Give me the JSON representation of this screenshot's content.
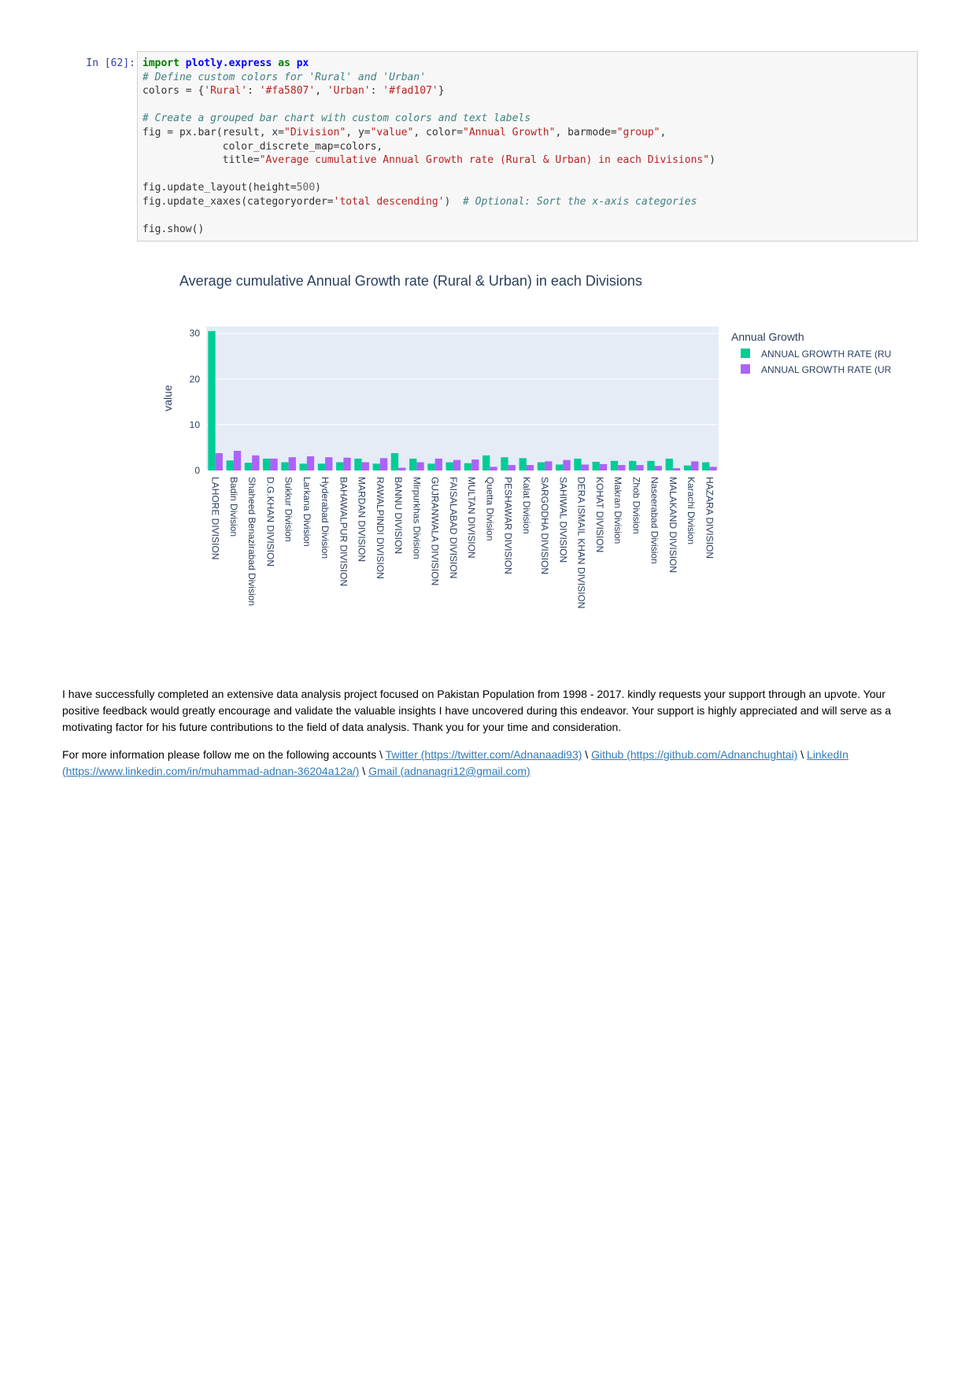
{
  "cell": {
    "prompt": "In [62]:",
    "code_lines": [
      [
        {
          "t": "kw",
          "v": "import"
        },
        {
          "t": "",
          "v": " "
        },
        {
          "t": "nn",
          "v": "plotly.express"
        },
        {
          "t": "",
          "v": " "
        },
        {
          "t": "kw",
          "v": "as"
        },
        {
          "t": "",
          "v": " "
        },
        {
          "t": "nn",
          "v": "px"
        }
      ],
      [
        {
          "t": "c1",
          "v": "# Define custom colors for 'Rural' and 'Urban'"
        }
      ],
      [
        {
          "t": "",
          "v": "colors = {"
        },
        {
          "t": "s",
          "v": "'Rural'"
        },
        {
          "t": "",
          "v": ": "
        },
        {
          "t": "s",
          "v": "'#fa5807'"
        },
        {
          "t": "",
          "v": ", "
        },
        {
          "t": "s",
          "v": "'Urban'"
        },
        {
          "t": "",
          "v": ": "
        },
        {
          "t": "s",
          "v": "'#fad107'"
        },
        {
          "t": "",
          "v": "}"
        }
      ],
      [],
      [
        {
          "t": "c1",
          "v": "# Create a grouped bar chart with custom colors and text labels"
        }
      ],
      [
        {
          "t": "",
          "v": "fig = px.bar(result, x="
        },
        {
          "t": "s",
          "v": "\"Division\""
        },
        {
          "t": "",
          "v": ", y="
        },
        {
          "t": "s",
          "v": "\"value\""
        },
        {
          "t": "",
          "v": ", color="
        },
        {
          "t": "s",
          "v": "\"Annual Growth\""
        },
        {
          "t": "",
          "v": ", barmode="
        },
        {
          "t": "s",
          "v": "\"group\""
        },
        {
          "t": "",
          "v": ","
        }
      ],
      [
        {
          "t": "",
          "v": "             color_discrete_map=colors,"
        }
      ],
      [
        {
          "t": "",
          "v": "             title="
        },
        {
          "t": "s",
          "v": "\"Average cumulative Annual Growth rate (Rural & Urban) in each Divisions\""
        },
        {
          "t": "",
          "v": ")"
        }
      ],
      [],
      [
        {
          "t": "",
          "v": "fig.update_layout(height="
        },
        {
          "t": "m",
          "v": "500"
        },
        {
          "t": "",
          "v": ")"
        }
      ],
      [
        {
          "t": "",
          "v": "fig.update_xaxes(categoryorder="
        },
        {
          "t": "s",
          "v": "'total descending'"
        },
        {
          "t": "",
          "v": ")  "
        },
        {
          "t": "c1",
          "v": "# Optional: Sort the x-axis categories"
        }
      ],
      [],
      [
        {
          "t": "",
          "v": "fig.show()"
        }
      ]
    ]
  },
  "chart_data": {
    "type": "bar",
    "title": "Average cumulative Annual Growth rate (Rural & Urban) in each Divisions",
    "xlabel": "",
    "ylabel": "value",
    "ylim": [
      0,
      31.5
    ],
    "yticks": [
      0,
      10,
      20,
      30
    ],
    "grid": true,
    "legend_title": "Annual Growth",
    "legend_position": "top-right",
    "categories": [
      "LAHORE DIVISION",
      "Badin Division",
      "Shaheed Benazirabad Division",
      "D.G.KHAN DIVISION",
      "Sukkur Division",
      "Larkana Division",
      "Hyderabad Division",
      "BAHAWALPUR DIVISION",
      "MARDAN DIVISION",
      "RAWALPINDI DIVISION",
      "BANNU DIVISION",
      "Mirpurkhas Division",
      "GUJRANWALA DIVISION",
      "FAISALABAD DIVISION",
      "MULTAN DIVISION",
      "Quetta Division",
      "PESHAWAR DIVISION",
      "Kalat Division",
      "SARGODHA DIVISION",
      "SAHIWAL DIVISION",
      "DERA ISMAIL KHAN DIVISION",
      "KOHAT DIVISION",
      "Makran Division",
      "Zhob Division",
      "Naseerabad Division",
      "MALAKAND DIVISION",
      "Karachi Division",
      "HAZARA DIVISION"
    ],
    "series": [
      {
        "name": "ANNUAL GROWTH RATE (RU",
        "color": "#00cc96",
        "values": [
          30.5,
          2.2,
          1.7,
          2.6,
          1.8,
          1.5,
          1.5,
          1.8,
          2.6,
          1.5,
          3.8,
          2.6,
          1.5,
          1.8,
          1.6,
          3.3,
          2.9,
          2.7,
          1.8,
          1.3,
          2.6,
          1.9,
          2.1,
          2.1,
          2.1,
          2.6,
          1.1,
          1.8
        ]
      },
      {
        "name": "ANNUAL GROWTH RATE (UR",
        "color": "#ab63fa",
        "values": [
          3.8,
          4.3,
          3.3,
          2.6,
          2.9,
          3.1,
          2.9,
          2.8,
          1.8,
          2.7,
          0.6,
          1.8,
          2.6,
          2.3,
          2.4,
          0.8,
          1.2,
          1.2,
          2.0,
          2.3,
          1.3,
          1.4,
          1.2,
          1.2,
          1.0,
          0.5,
          2.0,
          0.8
        ]
      }
    ]
  },
  "markdown": {
    "paragraph1": "I have successfully completed an extensive data analysis project focused on Pakistan Population from 1998 - 2017. kindly requests your support through an upvote. Your positive feedback would greatly encourage and validate the valuable insights I have uncovered during this endeavor. Your support is highly appreciated and will serve as a motivating factor for his future contributions to the field of data analysis. Thank you for your time and consideration.",
    "follow_intro": "For more information please follow me on the following accounts \\ ",
    "sep": " \\ ",
    "links": {
      "twitter": "Twitter (https://twitter.com/Adnanaadi93)",
      "github": "Github (https://github.com/Adnanchughtai)",
      "linkedin": "LinkedIn (https://www.linkedin.com/in/muhammad-adnan-36204a12a/)",
      "gmail": "Gmail (adnanagri12@gmail.com)"
    }
  }
}
